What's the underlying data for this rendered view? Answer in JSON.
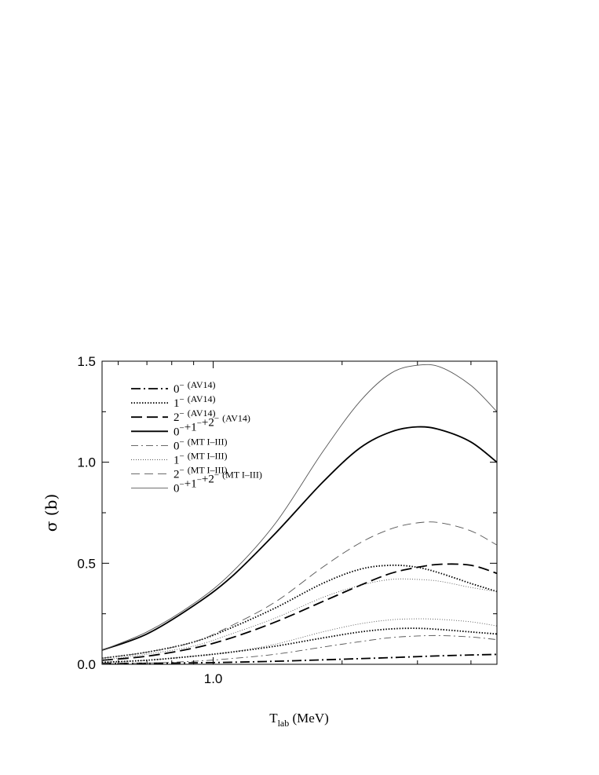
{
  "chart_data": {
    "type": "line",
    "title": "",
    "xlabel": "T",
    "xlabel_sub": "lab",
    "xlabel_unit": " (MeV)",
    "ylabel": "σ (b)",
    "xscale": "log",
    "xlim": [
      0.55,
      4.6
    ],
    "ylim": [
      0.0,
      1.5
    ],
    "xticks": [
      {
        "value": 1.0,
        "label": "1.0"
      }
    ],
    "yticks": [
      {
        "value": 0.0,
        "label": "0.0"
      },
      {
        "value": 0.5,
        "label": "0.5"
      },
      {
        "value": 1.0,
        "label": "1.0"
      },
      {
        "value": 1.5,
        "label": "1.5"
      }
    ],
    "grid": false,
    "legend_position": "top-left",
    "x": [
      0.55,
      0.7,
      0.9,
      1.1,
      1.4,
      1.8,
      2.2,
      2.6,
      3.0,
      3.4,
      4.0,
      4.6
    ],
    "series": [
      {
        "name": "0⁻",
        "potential": "(AV14)",
        "dash": "dashdot",
        "weight": "thick",
        "values": [
          0.004,
          0.005,
          0.007,
          0.01,
          0.015,
          0.022,
          0.028,
          0.033,
          0.038,
          0.042,
          0.046,
          0.049
        ]
      },
      {
        "name": "1⁻",
        "potential": "(AV14)",
        "dash": "dotted",
        "weight": "thick",
        "values": [
          0.03,
          0.06,
          0.11,
          0.18,
          0.28,
          0.4,
          0.47,
          0.49,
          0.48,
          0.45,
          0.4,
          0.36
        ]
      },
      {
        "name": "2⁻",
        "potential": "(AV14)",
        "dash": "dashed",
        "weight": "thick",
        "values": [
          0.02,
          0.04,
          0.08,
          0.13,
          0.21,
          0.31,
          0.39,
          0.45,
          0.48,
          0.495,
          0.49,
          0.45
        ]
      },
      {
        "name": "0⁻+1⁻+2⁻",
        "potential": "(AV14)",
        "dash": "solid",
        "weight": "thick",
        "values": [
          0.07,
          0.15,
          0.29,
          0.43,
          0.65,
          0.9,
          1.07,
          1.15,
          1.175,
          1.16,
          1.1,
          1.0
        ]
      },
      {
        "name": "0⁻",
        "potential": "(MT I–III)",
        "dash": "dashdot",
        "weight": "thin",
        "values": [
          0.003,
          0.006,
          0.015,
          0.028,
          0.05,
          0.085,
          0.112,
          0.132,
          0.14,
          0.142,
          0.135,
          0.122
        ]
      },
      {
        "name": "1⁻",
        "potential": "(MT I–III)",
        "dash": "dotted",
        "weight": "thin",
        "values": [
          0.01,
          0.02,
          0.04,
          0.06,
          0.1,
          0.16,
          0.2,
          0.22,
          0.225,
          0.222,
          0.21,
          0.19
        ]
      },
      {
        "name": "2⁻",
        "potential": "(MT I–III)",
        "dash": "dashed",
        "weight": "thin",
        "values": [
          0.03,
          0.06,
          0.11,
          0.19,
          0.31,
          0.48,
          0.6,
          0.67,
          0.7,
          0.7,
          0.66,
          0.59
        ]
      },
      {
        "name": "0⁻+1⁻+2⁻",
        "potential": "(MT I–III)",
        "dash": "solid",
        "weight": "thin",
        "values": [
          0.07,
          0.16,
          0.3,
          0.45,
          0.7,
          1.05,
          1.3,
          1.44,
          1.48,
          1.47,
          1.38,
          1.25
        ]
      }
    ],
    "extra_curves": [
      {
        "name": "",
        "dash": "dotted",
        "weight": "thick",
        "values": [
          0.01,
          0.02,
          0.04,
          0.06,
          0.09,
          0.13,
          0.16,
          0.175,
          0.178,
          0.172,
          0.16,
          0.15
        ]
      },
      {
        "name": "",
        "dash": "dotted",
        "weight": "thin",
        "values": [
          0.02,
          0.05,
          0.09,
          0.15,
          0.23,
          0.33,
          0.39,
          0.42,
          0.42,
          0.41,
          0.38,
          0.36
        ]
      }
    ]
  }
}
